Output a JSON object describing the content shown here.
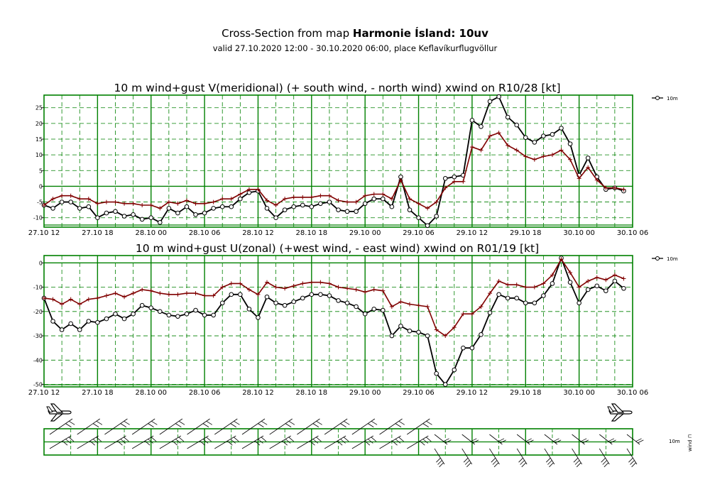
{
  "header": {
    "title_prefix": "Cross-Section from map ",
    "title_bold": "Harmonie Ísland: 10uv",
    "subtitle": "valid 27.10.2020 12:00 - 30.10.2020 06:00, place Keflavíkurflugvöllur"
  },
  "colors": {
    "grid": "#008000",
    "series_10m": "#000000",
    "series_gust": "#800000"
  },
  "chart_data": [
    {
      "type": "line",
      "title": "10 m wind+gust V(meridional) (+ south wind, - north wind) xwind on R10/28 [kt]",
      "x_tick_labels": [
        "27.10 12",
        "27.10 18",
        "28.10 00",
        "28.10 06",
        "28.10 12",
        "28.10 18",
        "29.10 00",
        "29.10 06",
        "29.10 12",
        "29.10 18",
        "30.10 00",
        "30.10 06"
      ],
      "x_range_hours": [
        0,
        66
      ],
      "y_ticks": [
        25,
        20,
        15,
        10,
        5,
        0,
        -5,
        -10
      ],
      "ylim": [
        -13,
        29
      ],
      "grid": true,
      "legend_position": "top-right",
      "legend_label": "10m",
      "series": [
        {
          "name": "10m",
          "color": "#000000",
          "marker": "circle",
          "values": [
            -6,
            -7,
            -5,
            -5,
            -7,
            -6.5,
            -10,
            -8.5,
            -8,
            -9.5,
            -9,
            -10.5,
            -10,
            -11.5,
            -7,
            -8.5,
            -6.5,
            -9,
            -8.5,
            -7,
            -6.5,
            -6.5,
            -4,
            -2,
            -1.5,
            -7,
            -10,
            -7.5,
            -6.5,
            -6,
            -6.5,
            -5.5,
            -5,
            -7.5,
            -8,
            -8,
            -5.5,
            -4,
            -4,
            -6.5,
            3,
            -7.5,
            -10,
            -12.5,
            -9.5,
            2.5,
            3,
            3.5,
            21,
            19,
            27,
            28.5,
            22,
            19.5,
            15.5,
            14,
            16,
            16.5,
            18.5,
            13.5,
            3.5,
            9,
            3,
            -1,
            -0.5,
            -1.5
          ]
        },
        {
          "marker": "plus",
          "color": "#800000",
          "values": [
            -6,
            -4,
            -3,
            -3,
            -4,
            -4,
            -5.5,
            -5,
            -5,
            -5.5,
            -5.5,
            -6,
            -6,
            -7,
            -5,
            -5.5,
            -4.5,
            -5.5,
            -5.5,
            -5,
            -4,
            -4,
            -2.5,
            -1,
            -1,
            -4.5,
            -6,
            -4,
            -3.5,
            -3.5,
            -3.5,
            -3,
            -3,
            -4.5,
            -5,
            -5,
            -3,
            -2.5,
            -2.5,
            -4,
            2,
            -4,
            -5.5,
            -7,
            -5,
            -0.5,
            1.5,
            1.5,
            12.5,
            11.5,
            16,
            17,
            13,
            11.5,
            9.5,
            8.5,
            9.5,
            10,
            11.5,
            8.5,
            2.5,
            6,
            2,
            -0.5,
            -0.5,
            -1
          ]
        }
      ]
    },
    {
      "type": "line",
      "title": "10 m wind+gust U(zonal) (+west wind, - east wind) xwind on R01/19 [kt]",
      "x_tick_labels": [
        "27.10 12",
        "27.10 18",
        "28.10 00",
        "28.10 06",
        "28.10 12",
        "28.10 18",
        "29.10 00",
        "29.10 06",
        "29.10 12",
        "29.10 18",
        "30.10 00",
        "30.10 06"
      ],
      "x_range_hours": [
        0,
        66
      ],
      "y_ticks": [
        0,
        -10,
        -20,
        -30,
        -40,
        -50
      ],
      "ylim": [
        -51,
        3
      ],
      "grid": true,
      "legend_position": "top-right",
      "legend_label": "10m",
      "series": [
        {
          "name": "10m",
          "color": "#000000",
          "marker": "circle",
          "values": [
            -14.5,
            -24,
            -27.5,
            -25,
            -27.5,
            -24,
            -24.5,
            -23,
            -21,
            -23,
            -21,
            -17.5,
            -18.5,
            -20,
            -21.5,
            -22,
            -21,
            -19.5,
            -21.5,
            -21.5,
            -16.5,
            -13,
            -13,
            -19,
            -22.5,
            -14,
            -16.5,
            -17.5,
            -16,
            -14.5,
            -13,
            -13,
            -13.5,
            -15.5,
            -16.5,
            -18,
            -21,
            -19,
            -19.5,
            -30,
            -26,
            -28,
            -28.5,
            -30,
            -45.5,
            -50,
            -44,
            -35,
            -35,
            -29.5,
            -20.5,
            -13,
            -14.5,
            -14.5,
            -16.5,
            -16.5,
            -13.5,
            -8.5,
            2,
            -8,
            -16.5,
            -11,
            -9.5,
            -11.5,
            -7.5,
            -10.5
          ]
        },
        {
          "marker": "plus",
          "color": "#800000",
          "values": [
            -14.5,
            -15,
            -17,
            -15,
            -17,
            -15,
            -14.5,
            -13.5,
            -12.5,
            -14,
            -12.5,
            -11,
            -11.5,
            -12.5,
            -13,
            -13,
            -12.5,
            -12.5,
            -13.5,
            -13.5,
            -10,
            -8.5,
            -8.5,
            -11,
            -13,
            -8,
            -10,
            -10.5,
            -9.5,
            -8.5,
            -8,
            -8,
            -8.5,
            -10,
            -10.5,
            -11,
            -12,
            -11,
            -11.5,
            -18,
            -16,
            -17,
            -17.5,
            -18,
            -27.5,
            -30,
            -26.5,
            -21,
            -21,
            -18,
            -12.5,
            -7.5,
            -9,
            -9,
            -10,
            -10,
            -8.5,
            -5,
            1.5,
            -4,
            -10,
            -7.5,
            -6,
            -7,
            -5,
            -6.5
          ]
        }
      ]
    },
    {
      "type": "wind_barbs",
      "row_labels": [
        "10m",
        "wind ⊓"
      ],
      "x_columns": 12,
      "barb_pattern": "full barbs, long shafts, varying rotation"
    }
  ]
}
